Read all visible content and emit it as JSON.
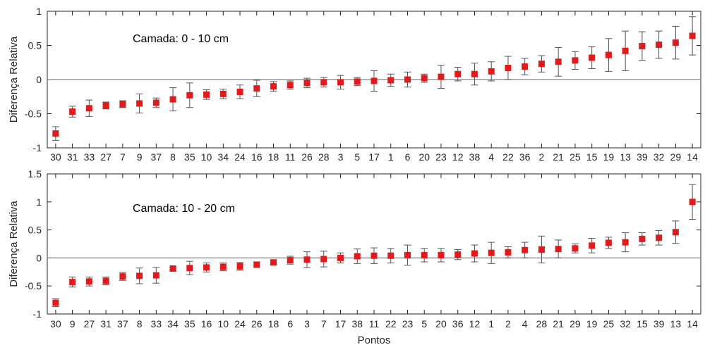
{
  "chart_data": [
    {
      "type": "scatter",
      "annotation": "Camada: 0 - 10 cm",
      "ylabel": "Diferença Relativa",
      "xlabel": "",
      "ylim": [
        -1,
        1
      ],
      "yticks": [
        "-1",
        "-0.5",
        "0",
        "0.5",
        "1"
      ],
      "grid": false,
      "reference_line": 0,
      "marker_color": "#e31a1c",
      "categories": [
        "30",
        "31",
        "33",
        "27",
        "7",
        "9",
        "37",
        "8",
        "35",
        "10",
        "34",
        "24",
        "16",
        "18",
        "11",
        "26",
        "28",
        "3",
        "5",
        "17",
        "1",
        "6",
        "20",
        "23",
        "12",
        "38",
        "4",
        "22",
        "36",
        "2",
        "21",
        "25",
        "15",
        "19",
        "13",
        "39",
        "32",
        "29",
        "14"
      ],
      "values": [
        -0.79,
        -0.47,
        -0.42,
        -0.38,
        -0.36,
        -0.35,
        -0.34,
        -0.29,
        -0.23,
        -0.22,
        -0.21,
        -0.18,
        -0.13,
        -0.1,
        -0.08,
        -0.05,
        -0.04,
        -0.04,
        -0.03,
        -0.02,
        -0.01,
        0.0,
        0.02,
        0.04,
        0.08,
        0.08,
        0.12,
        0.17,
        0.19,
        0.23,
        0.26,
        0.28,
        0.32,
        0.36,
        0.42,
        0.49,
        0.51,
        0.54,
        0.64
      ],
      "error": [
        0.1,
        0.08,
        0.12,
        0.05,
        0.05,
        0.14,
        0.07,
        0.17,
        0.18,
        0.07,
        0.07,
        0.1,
        0.12,
        0.07,
        0.06,
        0.07,
        0.07,
        0.1,
        0.06,
        0.15,
        0.09,
        0.11,
        0.06,
        0.17,
        0.1,
        0.16,
        0.14,
        0.17,
        0.12,
        0.12,
        0.21,
        0.13,
        0.16,
        0.24,
        0.29,
        0.21,
        0.2,
        0.24,
        0.28
      ]
    },
    {
      "type": "scatter",
      "annotation": "Camada: 10 - 20 cm",
      "ylabel": "Diferença Relativa",
      "xlabel": "Pontos",
      "ylim": [
        -1,
        1.5
      ],
      "yticks": [
        "-1",
        "-0.5",
        "0",
        "0.5",
        "1",
        "1.5"
      ],
      "grid": false,
      "reference_line": 0,
      "marker_color": "#e31a1c",
      "categories": [
        "30",
        "9",
        "27",
        "31",
        "37",
        "8",
        "33",
        "34",
        "35",
        "16",
        "10",
        "24",
        "26",
        "18",
        "6",
        "3",
        "7",
        "17",
        "38",
        "11",
        "22",
        "23",
        "5",
        "20",
        "36",
        "12",
        "1",
        "2",
        "4",
        "28",
        "21",
        "29",
        "19",
        "25",
        "32",
        "15",
        "39",
        "13",
        "14"
      ],
      "values": [
        -0.8,
        -0.43,
        -0.42,
        -0.41,
        -0.33,
        -0.32,
        -0.31,
        -0.19,
        -0.18,
        -0.17,
        -0.16,
        -0.15,
        -0.12,
        -0.08,
        -0.04,
        -0.03,
        -0.02,
        0.0,
        0.03,
        0.04,
        0.04,
        0.05,
        0.05,
        0.05,
        0.06,
        0.08,
        0.09,
        0.1,
        0.14,
        0.15,
        0.16,
        0.17,
        0.22,
        0.27,
        0.28,
        0.34,
        0.36,
        0.46,
        1.0
      ],
      "error": [
        0.07,
        0.09,
        0.08,
        0.07,
        0.07,
        0.14,
        0.14,
        0.03,
        0.12,
        0.08,
        0.07,
        0.07,
        0.05,
        0.04,
        0.07,
        0.14,
        0.14,
        0.09,
        0.13,
        0.14,
        0.13,
        0.18,
        0.12,
        0.12,
        0.09,
        0.15,
        0.19,
        0.1,
        0.14,
        0.24,
        0.16,
        0.08,
        0.13,
        0.1,
        0.17,
        0.11,
        0.13,
        0.2,
        0.31
      ]
    }
  ]
}
